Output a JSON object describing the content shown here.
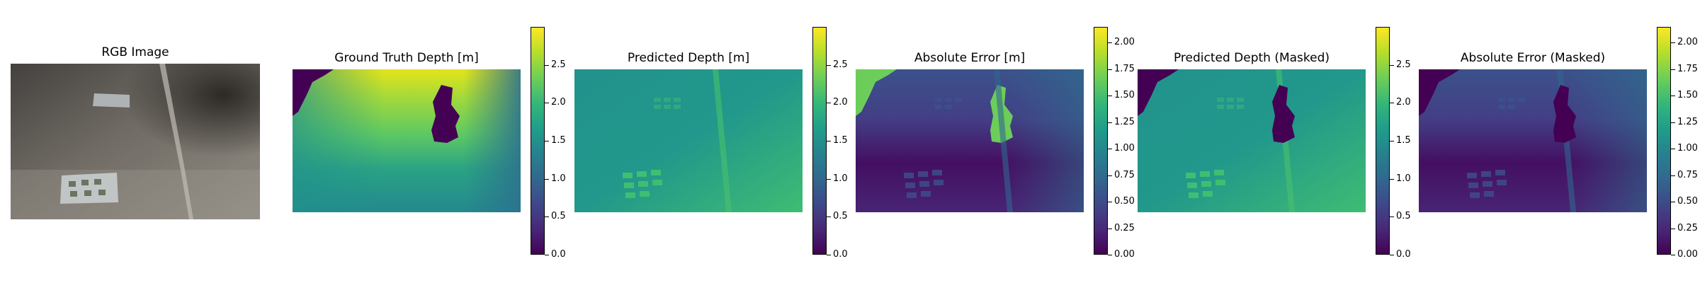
{
  "panels": [
    {
      "title": "RGB Image",
      "kind": "rgb"
    },
    {
      "title": "Ground Truth Depth [m]",
      "kind": "depth-gt",
      "vmax": 3.0,
      "colorbar_ticks": [
        "0.0",
        "0.5",
        "1.0",
        "1.5",
        "2.0",
        "2.5"
      ]
    },
    {
      "title": "Predicted Depth [m]",
      "kind": "depth-pred",
      "vmax": 3.0,
      "colorbar_ticks": [
        "0.0",
        "0.5",
        "1.0",
        "1.5",
        "2.0",
        "2.5"
      ]
    },
    {
      "title": "Absolute Error [m]",
      "kind": "error",
      "vmax": 2.15,
      "colorbar_ticks": [
        "0.00",
        "0.25",
        "0.50",
        "0.75",
        "1.00",
        "1.25",
        "1.50",
        "1.75",
        "2.00"
      ]
    },
    {
      "title": "Predicted Depth (Masked)",
      "kind": "depth-pred-masked",
      "vmax": 3.0,
      "colorbar_ticks": [
        "0.0",
        "0.5",
        "1.0",
        "1.5",
        "2.0",
        "2.5"
      ]
    },
    {
      "title": "Absolute Error (Masked)",
      "kind": "error-masked",
      "vmax": 2.15,
      "colorbar_ticks": [
        "0.00",
        "0.25",
        "0.50",
        "0.75",
        "1.00",
        "1.25",
        "1.50",
        "1.75",
        "2.00"
      ]
    }
  ],
  "colormap": "viridis"
}
